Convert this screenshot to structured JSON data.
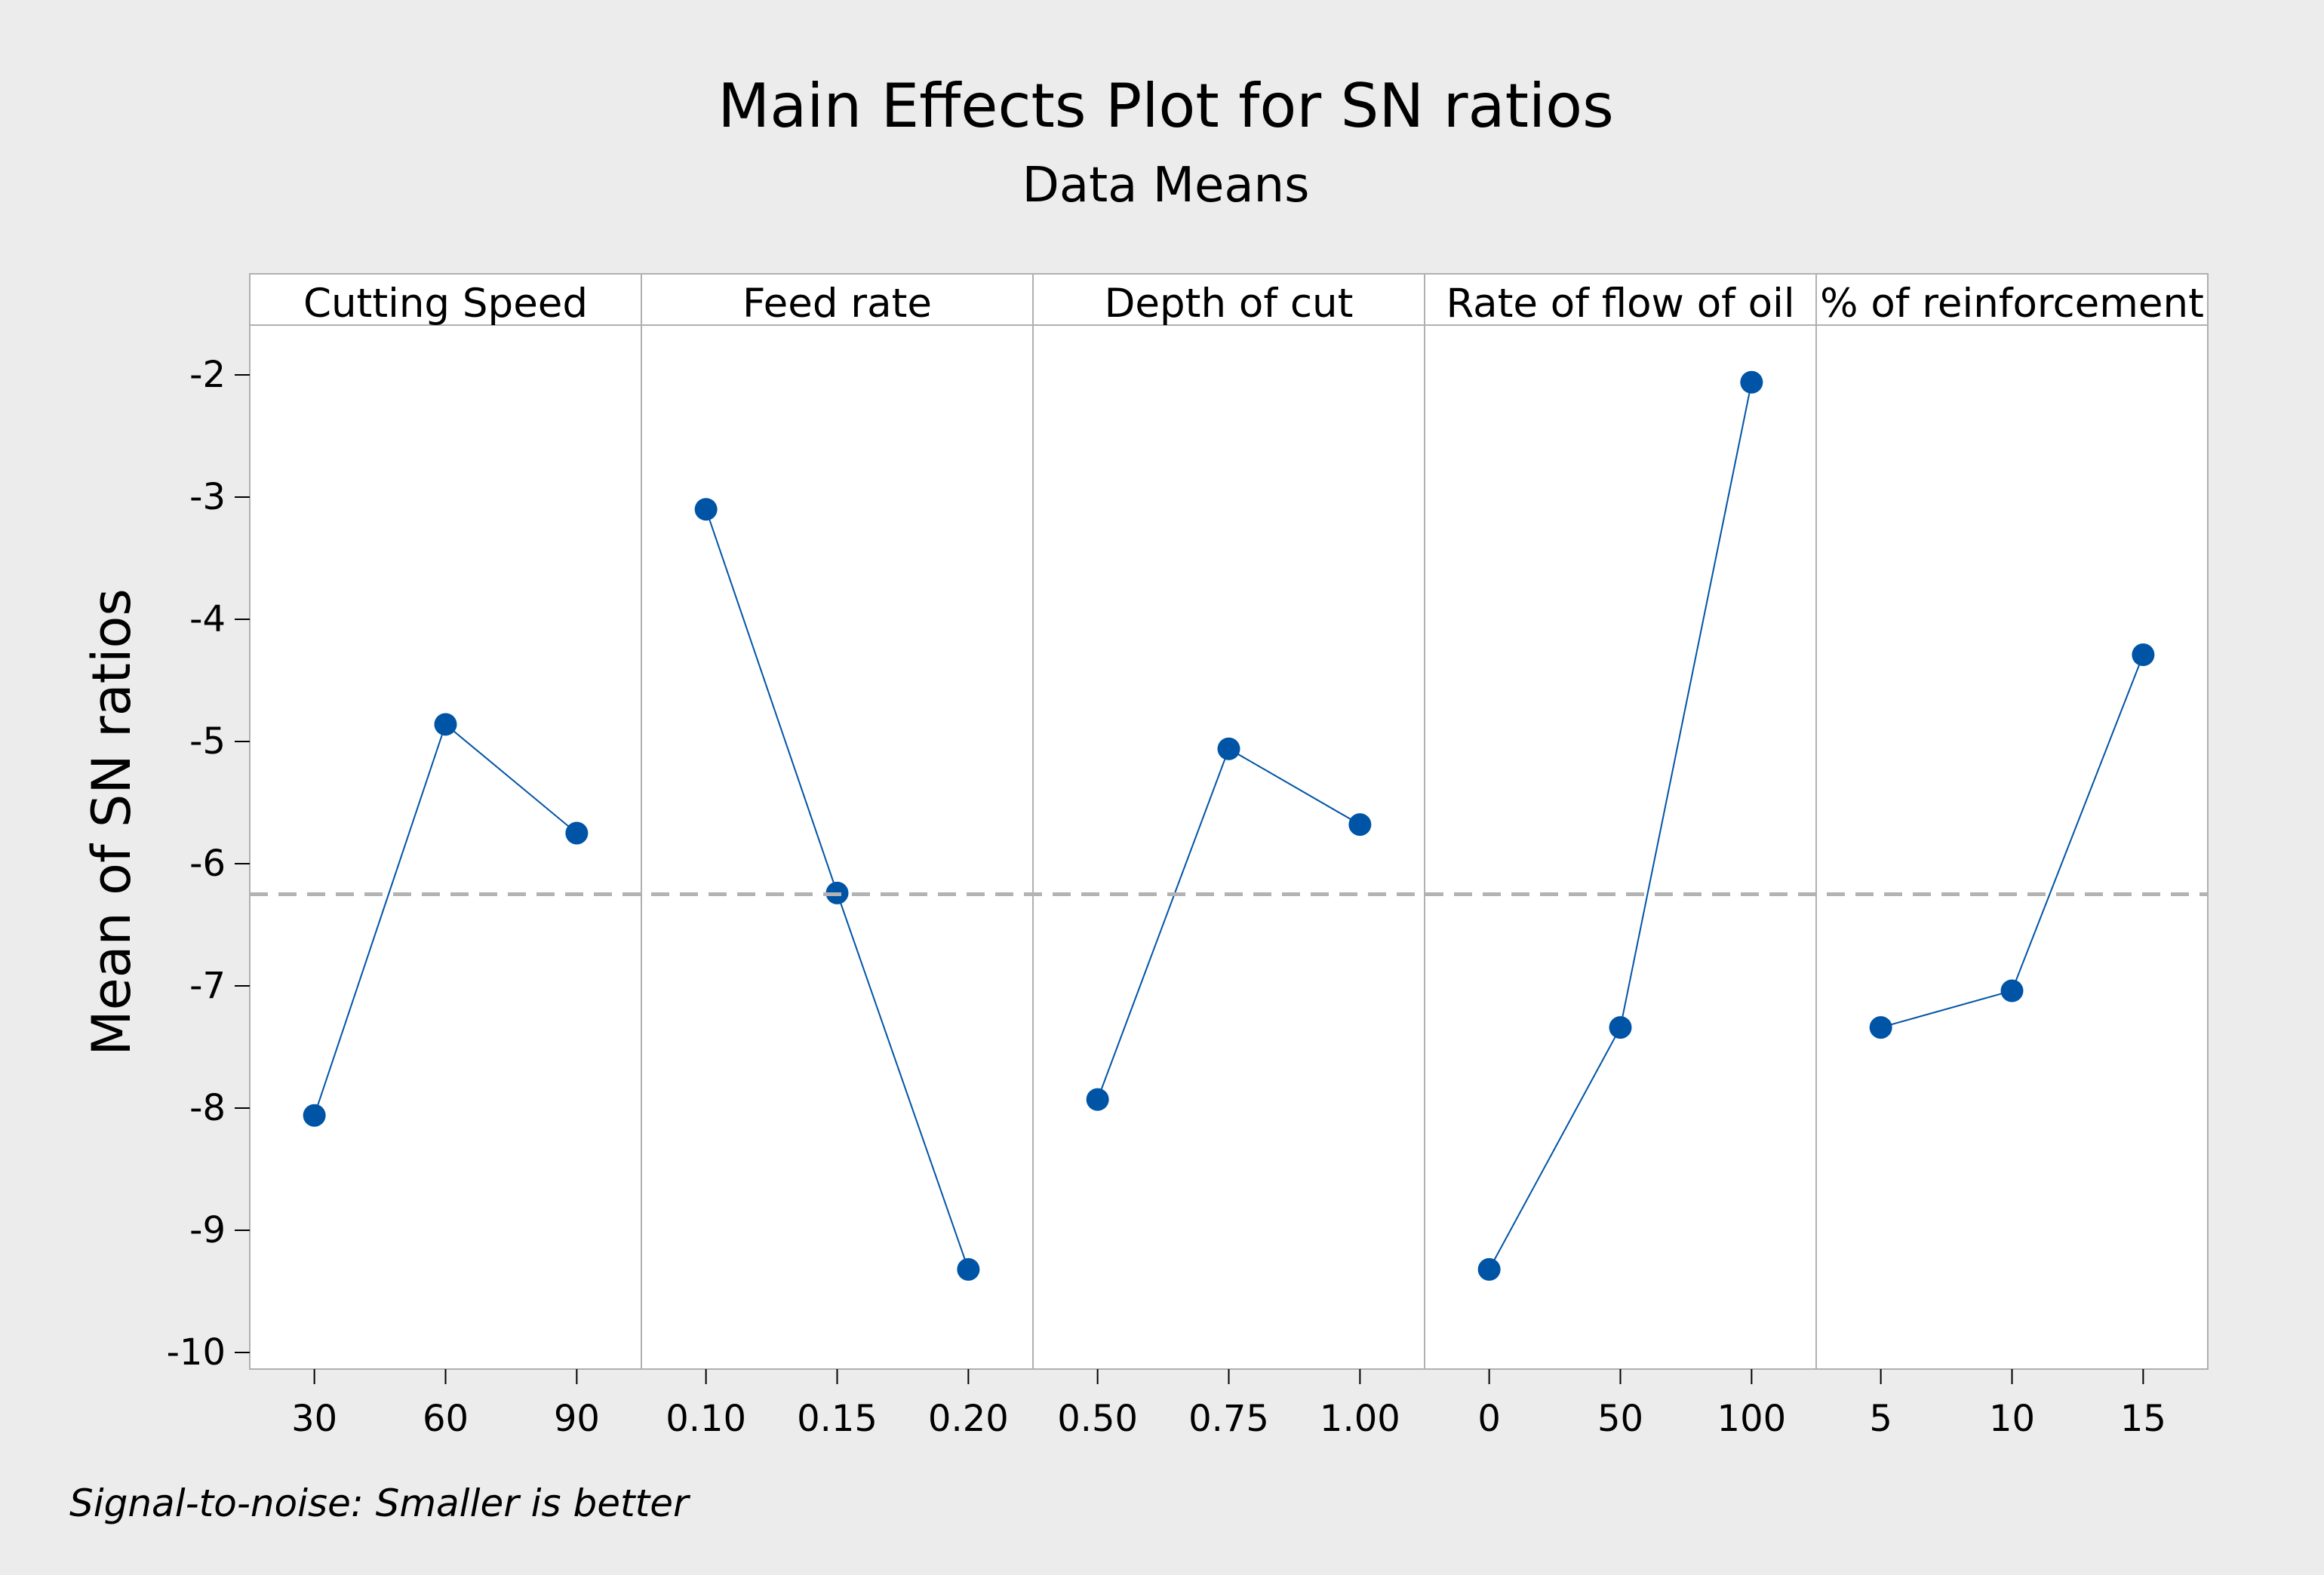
{
  "chart_data": {
    "type": "line",
    "title": "Main Effects Plot for SN ratios",
    "subtitle": "Data Means",
    "ylabel": "Mean of SN ratios",
    "footnote": "Signal-to-noise: Smaller is better",
    "ylim": [
      -10.2,
      -1.6
    ],
    "yticks": [
      -2,
      -3,
      -4,
      -5,
      -6,
      -7,
      -8,
      -9,
      -10
    ],
    "reference_line": {
      "value": -6.25,
      "style": "dashed"
    },
    "panels": [
      {
        "name": "Cutting Speed",
        "categories": [
          "30",
          "60",
          "90"
        ],
        "values": [
          -8.06,
          -4.86,
          -5.75
        ]
      },
      {
        "name": "Feed rate",
        "categories": [
          "0.10",
          "0.15",
          "0.20"
        ],
        "values": [
          -3.1,
          -6.24,
          -9.32
        ]
      },
      {
        "name": "Depth of cut",
        "categories": [
          "0.50",
          "0.75",
          "1.00"
        ],
        "values": [
          -7.93,
          -5.06,
          -5.68
        ]
      },
      {
        "name": "Rate of flow of oil",
        "categories": [
          "0",
          "50",
          "100"
        ],
        "values": [
          -9.32,
          -7.34,
          -2.06
        ]
      },
      {
        "name": "% of reinforcement",
        "categories": [
          "5",
          "10",
          "15"
        ],
        "values": [
          -7.34,
          -7.04,
          -4.29
        ]
      }
    ],
    "colors": {
      "background": "#ececec",
      "plot_background": "#ffffff",
      "series": "#0054a6",
      "marker": "#0054a6",
      "reference": "#b3b3b3",
      "divider": "#b0b0b0",
      "text": "#000000"
    }
  }
}
